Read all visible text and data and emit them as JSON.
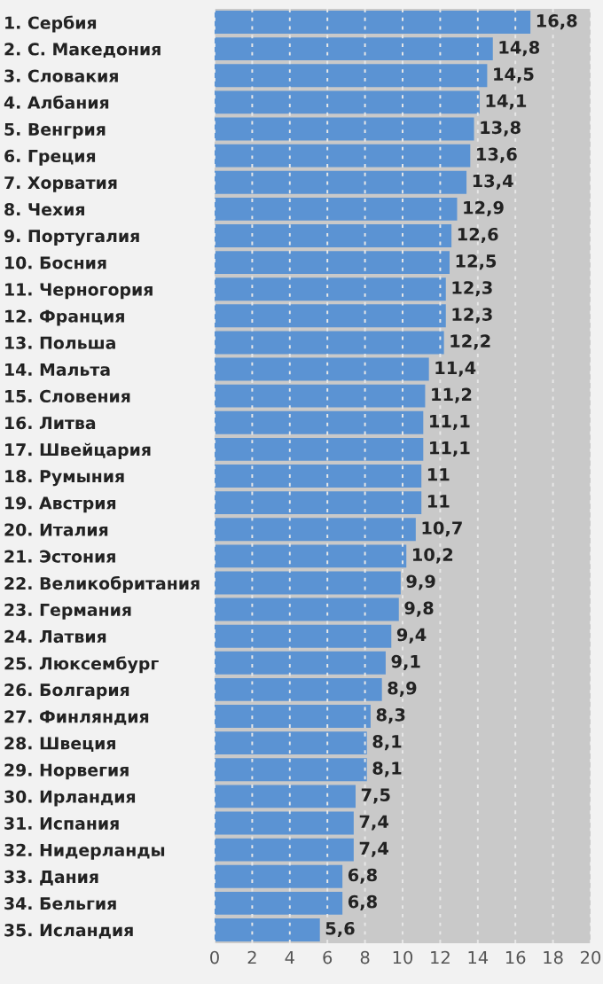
{
  "chart_data": {
    "type": "bar",
    "orientation": "horizontal",
    "categories": [
      "1. Сербия",
      "2. С. Македония",
      "3. Словакия",
      "4. Албания",
      "5. Венгрия",
      "6. Греция",
      "7. Хорватия",
      "8. Чехия",
      "9. Португалия",
      "10. Босния",
      "11. Черногория",
      "12. Франция",
      "13. Польша",
      "14. Мальта",
      "15. Словения",
      "16. Литва",
      "17. Швейцария",
      "18. Румыния",
      "19. Австрия",
      "20. Италия",
      "21. Эстония",
      "22. Великобритания",
      "23. Германия",
      "24. Латвия",
      "25. Люксембург",
      "26. Болгария",
      "27. Финляндия",
      "28. Швеция",
      "29. Норвегия",
      "30. Ирландия",
      "31. Испания",
      "32. Нидерланды",
      "33. Дания",
      "34. Бельгия",
      "35. Исландия"
    ],
    "values": [
      16.8,
      14.8,
      14.5,
      14.1,
      13.8,
      13.6,
      13.4,
      12.9,
      12.6,
      12.5,
      12.3,
      12.3,
      12.2,
      11.4,
      11.2,
      11.1,
      11.1,
      11,
      11,
      10.7,
      10.2,
      9.9,
      9.8,
      9.4,
      9.1,
      8.9,
      8.3,
      8.1,
      8.1,
      7.5,
      7.4,
      7.4,
      6.8,
      6.8,
      5.6
    ],
    "value_labels": [
      "16,8",
      "14,8",
      "14,5",
      "14,1",
      "13,8",
      "13,6",
      "13,4",
      "12,9",
      "12,6",
      "12,5",
      "12,3",
      "12,3",
      "12,2",
      "11,4",
      "11,2",
      "11,1",
      "11,1",
      "11",
      "11",
      "10,7",
      "10,2",
      "9,9",
      "9,8",
      "9,4",
      "9,1",
      "8,9",
      "8,3",
      "8,1",
      "8,1",
      "7,5",
      "7,4",
      "7,4",
      "6,8",
      "6,8",
      "5,6"
    ],
    "color": "#5b93d3",
    "xlim": [
      0,
      20
    ],
    "xticks": [
      0,
      2,
      4,
      6,
      8,
      10,
      12,
      14,
      16,
      18,
      20
    ],
    "grid": "x",
    "legend": false
  }
}
